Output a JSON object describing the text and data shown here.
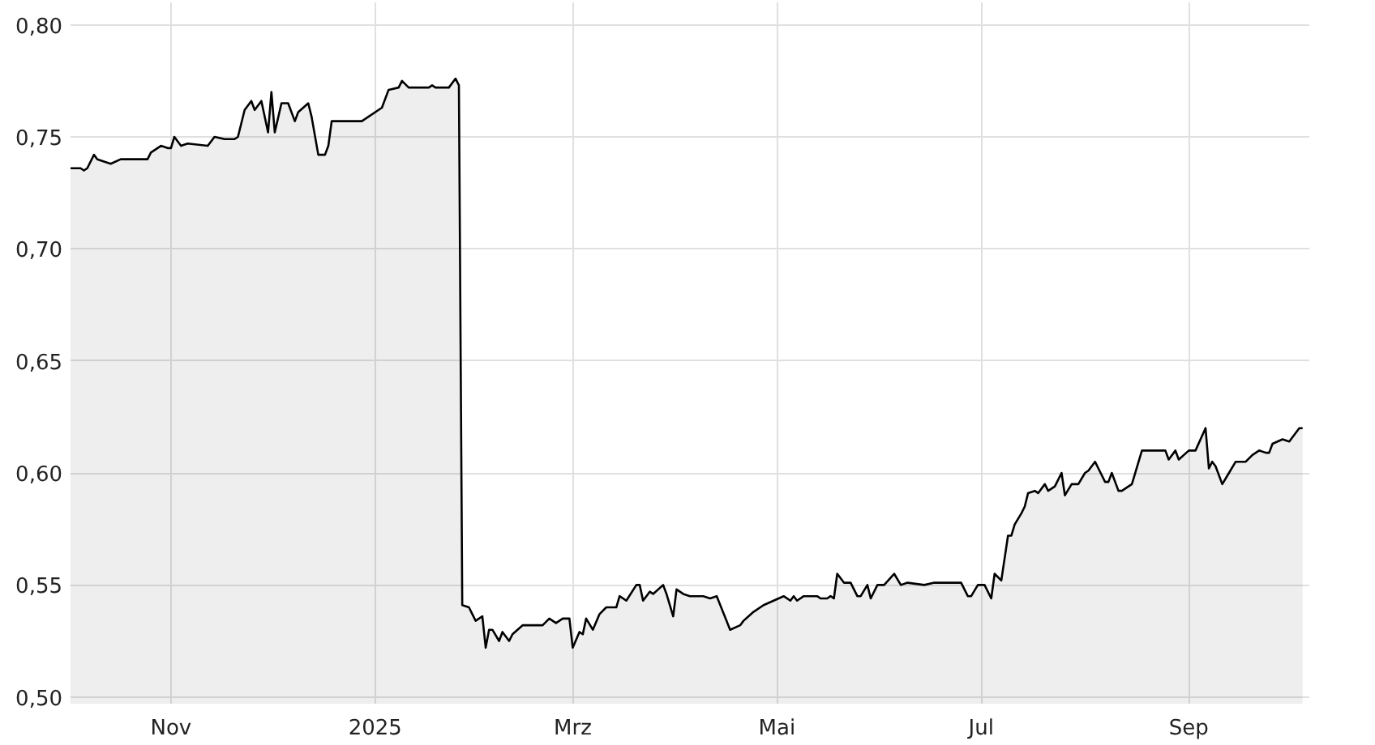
{
  "chart_data": {
    "type": "area",
    "x": [
      "2024-10-02",
      "2024-10-05",
      "2024-10-06",
      "2024-10-07",
      "2024-10-09",
      "2024-10-10",
      "2024-10-12",
      "2024-10-14",
      "2024-10-17",
      "2024-10-25",
      "2024-10-26",
      "2024-10-29",
      "2024-10-31",
      "2024-11-01",
      "2024-11-02",
      "2024-11-04",
      "2024-11-06",
      "2024-11-12",
      "2024-11-14",
      "2024-11-17",
      "2024-11-20",
      "2024-11-21",
      "2024-11-23",
      "2024-11-25",
      "2024-11-26",
      "2024-11-28",
      "2024-11-30",
      "2024-12-01",
      "2024-12-02",
      "2024-12-04",
      "2024-12-06",
      "2024-12-08",
      "2024-12-09",
      "2024-12-12",
      "2024-12-13",
      "2024-12-15",
      "2024-12-17",
      "2024-12-18",
      "2024-12-19",
      "2024-12-28",
      "2025-01-03",
      "2025-01-05",
      "2025-01-08",
      "2025-01-09",
      "2025-01-11",
      "2025-01-17",
      "2025-01-18",
      "2025-01-19",
      "2025-01-23",
      "2025-01-25",
      "2025-01-26",
      "2025-01-27",
      "2025-01-29",
      "2025-01-30",
      "2025-01-31",
      "2025-02-02",
      "2025-02-03",
      "2025-02-04",
      "2025-02-05",
      "2025-02-07",
      "2025-02-08",
      "2025-02-10",
      "2025-02-11",
      "2025-02-14",
      "2025-02-20",
      "2025-02-22",
      "2025-02-24",
      "2025-02-26",
      "2025-02-28",
      "2025-03-01",
      "2025-03-03",
      "2025-03-04",
      "2025-03-05",
      "2025-03-07",
      "2025-03-09",
      "2025-03-11",
      "2025-03-14",
      "2025-03-15",
      "2025-03-17",
      "2025-03-20",
      "2025-03-21",
      "2025-03-22",
      "2025-03-24",
      "2025-03-25",
      "2025-03-28",
      "2025-03-29",
      "2025-03-31",
      "2025-04-01",
      "2025-04-03",
      "2025-04-05",
      "2025-04-09",
      "2025-04-11",
      "2025-04-13",
      "2025-04-17",
      "2025-04-20",
      "2025-04-21",
      "2025-04-24",
      "2025-04-27",
      "2025-04-30",
      "2025-05-03",
      "2025-05-05",
      "2025-05-06",
      "2025-05-07",
      "2025-05-09",
      "2025-05-13",
      "2025-05-14",
      "2025-05-16",
      "2025-05-17",
      "2025-05-18",
      "2025-05-19",
      "2025-05-21",
      "2025-05-23",
      "2025-05-25",
      "2025-05-26",
      "2025-05-28",
      "2025-05-29",
      "2025-05-31",
      "2025-06-02",
      "2025-06-05",
      "2025-06-07",
      "2025-06-09",
      "2025-06-14",
      "2025-06-17",
      "2025-06-20",
      "2025-06-25",
      "2025-06-27",
      "2025-06-28",
      "2025-06-30",
      "2025-07-02",
      "2025-07-04",
      "2025-07-05",
      "2025-07-07",
      "2025-07-09",
      "2025-07-10",
      "2025-07-11",
      "2025-07-13",
      "2025-07-14",
      "2025-07-15",
      "2025-07-17",
      "2025-07-18",
      "2025-07-20",
      "2025-07-21",
      "2025-07-23",
      "2025-07-25",
      "2025-07-26",
      "2025-07-28",
      "2025-07-30",
      "2025-08-01",
      "2025-08-02",
      "2025-08-04",
      "2025-08-05",
      "2025-08-07",
      "2025-08-08",
      "2025-08-09",
      "2025-08-11",
      "2025-08-12",
      "2025-08-14",
      "2025-08-15",
      "2025-08-18",
      "2025-08-25",
      "2025-08-26",
      "2025-08-28",
      "2025-08-29",
      "2025-09-01",
      "2025-09-03",
      "2025-09-06",
      "2025-09-07",
      "2025-09-08",
      "2025-09-09",
      "2025-09-11",
      "2025-09-13",
      "2025-09-15",
      "2025-09-18",
      "2025-09-20",
      "2025-09-21",
      "2025-09-22",
      "2025-09-24",
      "2025-09-25",
      "2025-09-26",
      "2025-09-29",
      "2025-10-01",
      "2025-10-04",
      "2025-10-05"
    ],
    "series": [
      {
        "color": "#000000",
        "values": [
          0.736,
          0.736,
          0.735,
          0.736,
          0.742,
          0.74,
          0.739,
          0.738,
          0.74,
          0.74,
          0.743,
          0.746,
          0.745,
          0.745,
          0.75,
          0.746,
          0.747,
          0.746,
          0.75,
          0.749,
          0.749,
          0.75,
          0.762,
          0.766,
          0.762,
          0.766,
          0.752,
          0.77,
          0.752,
          0.765,
          0.765,
          0.757,
          0.761,
          0.765,
          0.759,
          0.742,
          0.742,
          0.746,
          0.757,
          0.757,
          0.763,
          0.771,
          0.772,
          0.775,
          0.772,
          0.772,
          0.773,
          0.772,
          0.772,
          0.776,
          0.773,
          0.541,
          0.54,
          0.537,
          0.534,
          0.536,
          0.522,
          0.53,
          0.53,
          0.525,
          0.529,
          0.525,
          0.528,
          0.532,
          0.532,
          0.535,
          0.533,
          0.535,
          0.535,
          0.522,
          0.529,
          0.528,
          0.535,
          0.53,
          0.537,
          0.54,
          0.54,
          0.545,
          0.543,
          0.55,
          0.55,
          0.543,
          0.547,
          0.546,
          0.55,
          0.546,
          0.536,
          0.548,
          0.546,
          0.545,
          0.545,
          0.544,
          0.545,
          0.53,
          0.532,
          0.534,
          0.538,
          0.541,
          0.543,
          0.545,
          0.543,
          0.545,
          0.543,
          0.545,
          0.545,
          0.544,
          0.544,
          0.545,
          0.544,
          0.555,
          0.551,
          0.551,
          0.545,
          0.545,
          0.55,
          0.544,
          0.55,
          0.55,
          0.555,
          0.55,
          0.551,
          0.55,
          0.551,
          0.551,
          0.551,
          0.545,
          0.545,
          0.55,
          0.55,
          0.544,
          0.555,
          0.552,
          0.572,
          0.572,
          0.577,
          0.582,
          0.585,
          0.591,
          0.592,
          0.591,
          0.595,
          0.592,
          0.594,
          0.6,
          0.59,
          0.595,
          0.595,
          0.6,
          0.601,
          0.605,
          0.602,
          0.596,
          0.596,
          0.6,
          0.592,
          0.592,
          0.594,
          0.595,
          0.61,
          0.61,
          0.606,
          0.61,
          0.606,
          0.61,
          0.61,
          0.62,
          0.602,
          0.605,
          0.603,
          0.595,
          0.6,
          0.605,
          0.605,
          0.608,
          0.609,
          0.61,
          0.609,
          0.609,
          0.613,
          0.615,
          0.614,
          0.62,
          0.62
        ]
      }
    ],
    "xlim": [
      "2024-10-02",
      "2025-10-07"
    ],
    "xticks": [
      {
        "value": "2024-11-01",
        "label": "Nov"
      },
      {
        "value": "2025-01-01",
        "label": "2025"
      },
      {
        "value": "2025-03-01",
        "label": "Mrz"
      },
      {
        "value": "2025-05-01",
        "label": "Mai"
      },
      {
        "value": "2025-07-01",
        "label": "Jul"
      },
      {
        "value": "2025-09-01",
        "label": "Sep"
      }
    ],
    "ylim": [
      0.497,
      0.81
    ],
    "yticks": [
      {
        "value": 0.5,
        "label": "0,50"
      },
      {
        "value": 0.55,
        "label": "0,55"
      },
      {
        "value": 0.6,
        "label": "0,60"
      },
      {
        "value": 0.65,
        "label": "0,65"
      },
      {
        "value": 0.7,
        "label": "0,70"
      },
      {
        "value": 0.75,
        "label": "0,75"
      },
      {
        "value": 0.8,
        "label": "0,80"
      }
    ],
    "grid": true
  }
}
